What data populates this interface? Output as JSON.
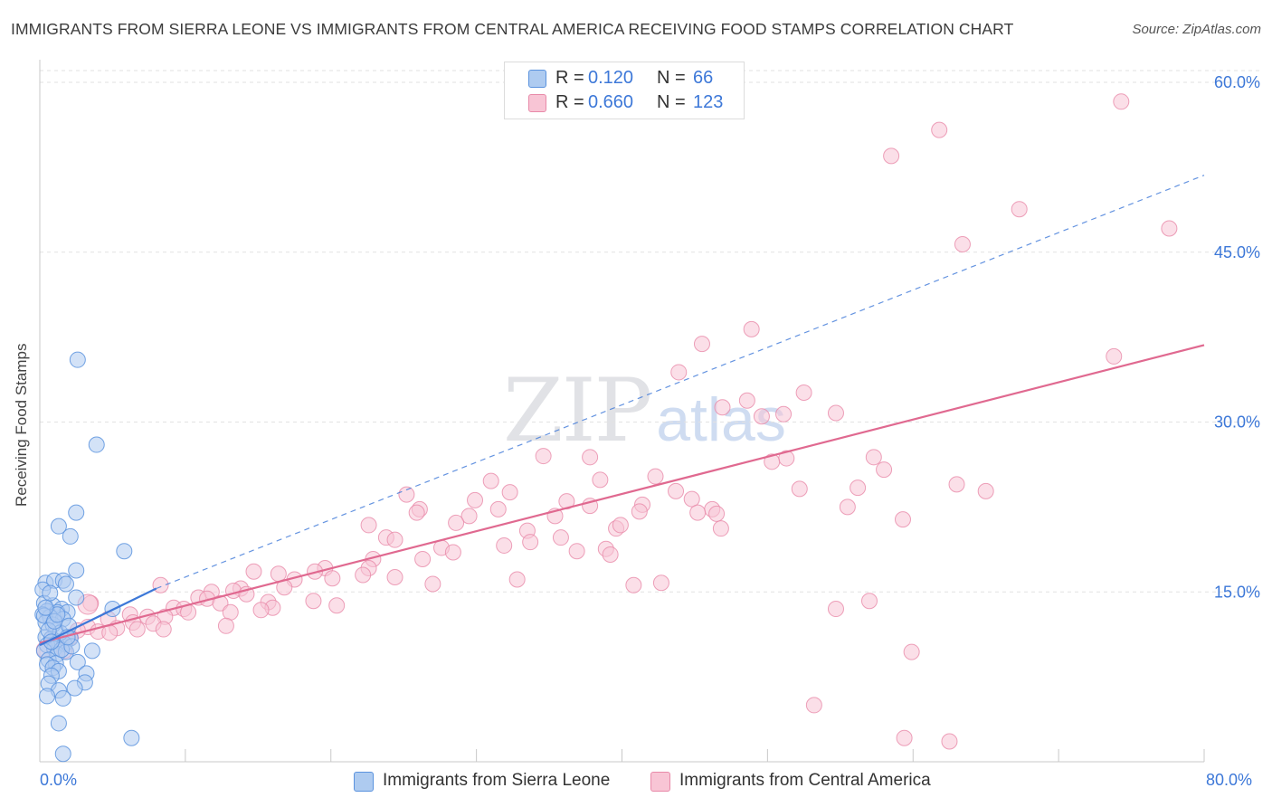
{
  "header": {
    "title": "IMMIGRANTS FROM SIERRA LEONE VS IMMIGRANTS FROM CENTRAL AMERICA RECEIVING FOOD STAMPS CORRELATION CHART",
    "source": "Source: ZipAtlas.com"
  },
  "watermark": {
    "zip": "ZIP",
    "atlas": "atlas"
  },
  "legend_top": {
    "rows": [
      {
        "r_label": "R =",
        "r_value": "0.120",
        "n_label": "N =",
        "n_value": "66"
      },
      {
        "r_label": "R =",
        "r_value": "0.660",
        "n_label": "N =",
        "n_value": "123"
      }
    ]
  },
  "legend_bottom": {
    "series1": "Immigrants from Sierra Leone",
    "series2": "Immigrants from Central America"
  },
  "colors": {
    "blue_fill": "#aecbf0",
    "blue_stroke": "#5b93de",
    "blue_line": "#3d78d8",
    "pink_fill": "#f8c5d5",
    "pink_stroke": "#e88aa9",
    "pink_line": "#e06990",
    "tick_text": "#3d78d8",
    "grid": "#e2e2e2"
  },
  "chart_data": {
    "type": "scatter",
    "title": "IMMIGRANTS FROM SIERRA LEONE VS IMMIGRANTS FROM CENTRAL AMERICA RECEIVING FOOD STAMPS CORRELATION CHART",
    "xlabel": "",
    "ylabel": "Receiving Food Stamps",
    "xlim": [
      0,
      80
    ],
    "ylim": [
      0,
      62
    ],
    "x_tick_labels": [
      "0.0%",
      "80.0%"
    ],
    "y_ticks": [
      15,
      30,
      45,
      60
    ],
    "y_tick_labels": [
      "15.0%",
      "30.0%",
      "45.0%",
      "60.0%"
    ],
    "grid": true,
    "legend_position": "top-center",
    "series": [
      {
        "name": "Immigrants from Sierra Leone",
        "color": "blue",
        "R": 0.12,
        "N": 66,
        "trend": {
          "x": [
            0,
            8
          ],
          "y": [
            10.3,
            15.3
          ],
          "style": "solid"
        },
        "trend_extended": {
          "x": [
            8,
            80
          ],
          "y": [
            15.3,
            51.8
          ],
          "style": "dashed"
        },
        "points": [
          [
            2.6,
            35.5
          ],
          [
            3.9,
            28.0
          ],
          [
            2.5,
            22.0
          ],
          [
            1.3,
            20.8
          ],
          [
            2.1,
            19.9
          ],
          [
            5.8,
            18.6
          ],
          [
            2.5,
            16.9
          ],
          [
            0.4,
            15.8
          ],
          [
            1.0,
            16.0
          ],
          [
            1.6,
            16.0
          ],
          [
            0.2,
            15.2
          ],
          [
            2.5,
            14.5
          ],
          [
            0.3,
            14.0
          ],
          [
            0.9,
            13.8
          ],
          [
            1.5,
            13.5
          ],
          [
            0.5,
            13.3
          ],
          [
            1.2,
            13.2
          ],
          [
            0.2,
            13.0
          ],
          [
            0.7,
            12.8
          ],
          [
            1.9,
            13.2
          ],
          [
            1.6,
            12.6
          ],
          [
            5.0,
            13.5
          ],
          [
            0.4,
            12.3
          ],
          [
            1.1,
            11.6
          ],
          [
            0.4,
            11.0
          ],
          [
            0.8,
            10.9
          ],
          [
            1.3,
            10.6
          ],
          [
            2.1,
            10.9
          ],
          [
            0.5,
            10.3
          ],
          [
            1.0,
            10.0
          ],
          [
            1.7,
            10.4
          ],
          [
            0.3,
            9.8
          ],
          [
            1.2,
            9.5
          ],
          [
            1.8,
            9.7
          ],
          [
            3.6,
            9.8
          ],
          [
            0.6,
            9.0
          ],
          [
            1.1,
            8.7
          ],
          [
            2.6,
            8.8
          ],
          [
            0.5,
            8.6
          ],
          [
            0.9,
            8.3
          ],
          [
            1.3,
            8.0
          ],
          [
            3.2,
            7.8
          ],
          [
            0.8,
            7.6
          ],
          [
            0.6,
            6.9
          ],
          [
            3.1,
            7.0
          ],
          [
            2.4,
            6.5
          ],
          [
            1.3,
            6.3
          ],
          [
            0.5,
            5.8
          ],
          [
            1.6,
            5.6
          ],
          [
            1.3,
            3.4
          ],
          [
            6.3,
            2.1
          ],
          [
            1.6,
            0.7
          ],
          [
            0.3,
            12.9
          ],
          [
            0.7,
            14.9
          ],
          [
            1.8,
            15.7
          ],
          [
            0.9,
            12.1
          ],
          [
            1.4,
            11.4
          ],
          [
            2.0,
            12.0
          ],
          [
            0.6,
            11.6
          ],
          [
            1.0,
            12.4
          ],
          [
            1.5,
            9.9
          ],
          [
            2.2,
            10.2
          ],
          [
            0.8,
            10.6
          ],
          [
            1.2,
            13.0
          ],
          [
            0.4,
            13.6
          ],
          [
            1.9,
            11.0
          ]
        ]
      },
      {
        "name": "Immigrants from Central America",
        "color": "pink",
        "R": 0.66,
        "N": 123,
        "trend": {
          "x": [
            0,
            80
          ],
          "y": [
            10.5,
            36.8
          ],
          "style": "solid"
        },
        "points": [
          [
            74.3,
            58.3
          ],
          [
            61.8,
            55.8
          ],
          [
            58.5,
            53.5
          ],
          [
            67.3,
            48.8
          ],
          [
            77.6,
            47.1
          ],
          [
            63.4,
            45.7
          ],
          [
            48.9,
            38.2
          ],
          [
            45.5,
            36.9
          ],
          [
            43.9,
            34.4
          ],
          [
            73.8,
            35.8
          ],
          [
            52.5,
            32.6
          ],
          [
            48.6,
            31.9
          ],
          [
            46.9,
            31.3
          ],
          [
            54.7,
            30.8
          ],
          [
            49.6,
            30.5
          ],
          [
            51.1,
            30.7
          ],
          [
            34.6,
            27.0
          ],
          [
            37.8,
            26.9
          ],
          [
            57.3,
            26.9
          ],
          [
            51.3,
            26.8
          ],
          [
            50.3,
            26.5
          ],
          [
            58.0,
            25.8
          ],
          [
            31.0,
            24.8
          ],
          [
            38.5,
            24.9
          ],
          [
            42.3,
            25.2
          ],
          [
            63.0,
            24.5
          ],
          [
            65.0,
            23.9
          ],
          [
            32.3,
            23.8
          ],
          [
            25.2,
            23.6
          ],
          [
            43.7,
            23.9
          ],
          [
            52.2,
            24.1
          ],
          [
            56.2,
            24.2
          ],
          [
            29.9,
            23.1
          ],
          [
            36.2,
            23.0
          ],
          [
            41.4,
            22.7
          ],
          [
            44.8,
            23.2
          ],
          [
            26.1,
            22.3
          ],
          [
            31.5,
            22.3
          ],
          [
            37.8,
            22.6
          ],
          [
            46.2,
            22.3
          ],
          [
            45.2,
            22.0
          ],
          [
            55.5,
            22.5
          ],
          [
            25.9,
            22.0
          ],
          [
            29.5,
            21.7
          ],
          [
            41.2,
            22.1
          ],
          [
            28.6,
            21.1
          ],
          [
            35.4,
            21.7
          ],
          [
            46.5,
            21.9
          ],
          [
            22.6,
            20.9
          ],
          [
            33.5,
            20.4
          ],
          [
            39.6,
            20.6
          ],
          [
            39.9,
            20.9
          ],
          [
            59.3,
            21.4
          ],
          [
            46.8,
            20.6
          ],
          [
            23.8,
            19.8
          ],
          [
            33.7,
            19.4
          ],
          [
            35.8,
            19.8
          ],
          [
            24.4,
            19.6
          ],
          [
            31.9,
            19.1
          ],
          [
            27.6,
            18.9
          ],
          [
            36.9,
            18.6
          ],
          [
            38.9,
            18.8
          ],
          [
            28.4,
            18.5
          ],
          [
            39.2,
            18.3
          ],
          [
            22.9,
            17.9
          ],
          [
            26.3,
            17.9
          ],
          [
            19.6,
            17.1
          ],
          [
            22.6,
            17.1
          ],
          [
            18.9,
            16.8
          ],
          [
            14.7,
            16.8
          ],
          [
            20.1,
            16.2
          ],
          [
            22.2,
            16.5
          ],
          [
            16.4,
            16.6
          ],
          [
            24.4,
            16.3
          ],
          [
            17.5,
            16.1
          ],
          [
            27.0,
            15.7
          ],
          [
            13.8,
            15.3
          ],
          [
            16.8,
            15.4
          ],
          [
            32.8,
            16.1
          ],
          [
            40.8,
            15.6
          ],
          [
            8.3,
            15.6
          ],
          [
            13.3,
            15.1
          ],
          [
            11.8,
            15.0
          ],
          [
            14.2,
            14.8
          ],
          [
            10.9,
            14.5
          ],
          [
            11.5,
            14.4
          ],
          [
            12.4,
            14.0
          ],
          [
            18.8,
            14.2
          ],
          [
            15.7,
            14.1
          ],
          [
            16.0,
            13.6
          ],
          [
            20.4,
            13.8
          ],
          [
            9.2,
            13.6
          ],
          [
            9.9,
            13.5
          ],
          [
            10.2,
            13.2
          ],
          [
            13.1,
            13.2
          ],
          [
            6.2,
            13.0
          ],
          [
            7.4,
            12.8
          ],
          [
            8.6,
            12.8
          ],
          [
            15.2,
            13.4
          ],
          [
            4.7,
            12.6
          ],
          [
            6.4,
            12.3
          ],
          [
            7.8,
            12.2
          ],
          [
            3.3,
            11.9
          ],
          [
            5.3,
            11.8
          ],
          [
            12.8,
            12.0
          ],
          [
            6.7,
            11.7
          ],
          [
            8.5,
            11.7
          ],
          [
            2.6,
            11.6
          ],
          [
            4.0,
            11.5
          ],
          [
            4.8,
            11.4
          ],
          [
            2.1,
            11.0
          ],
          [
            0.8,
            10.9
          ],
          [
            1.4,
            10.6
          ],
          [
            0.3,
            9.9
          ],
          [
            1.7,
            9.8
          ],
          [
            54.7,
            13.5
          ],
          [
            59.9,
            9.7
          ],
          [
            53.2,
            5.0
          ],
          [
            59.4,
            2.1
          ],
          [
            62.5,
            1.8
          ],
          [
            3.5,
            14.0
          ],
          [
            57.0,
            14.2
          ],
          [
            42.7,
            15.8
          ]
        ]
      }
    ]
  }
}
